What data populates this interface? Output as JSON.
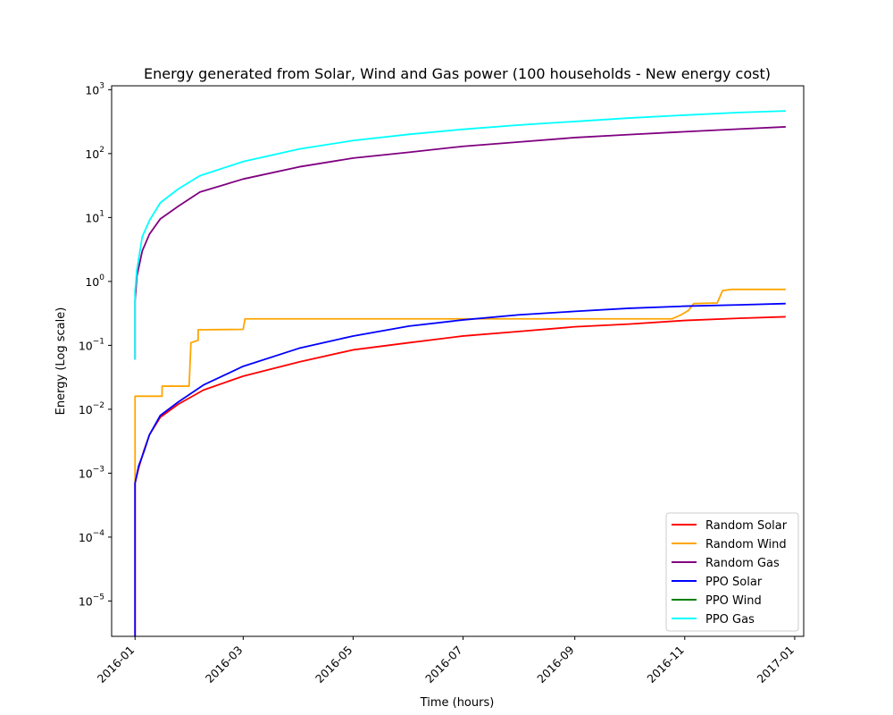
{
  "chart_data": {
    "type": "line",
    "title": "Energy generated from Solar, Wind and Gas power (100 households - New energy cost)",
    "xlabel": "Time (hours)",
    "ylabel": "Energy (Log scale)",
    "yscale": "log",
    "ylim": [
      2.8e-06,
      1150
    ],
    "xlim": [
      "2015-12-19",
      "2017-01-06"
    ],
    "grid": false,
    "legend_position": "lower-right",
    "x_ticks": [
      "2016-01",
      "2016-03",
      "2016-05",
      "2016-07",
      "2016-09",
      "2016-11",
      "2017-01"
    ],
    "y_ticks": [
      {
        "value": 1e-05,
        "base": "10",
        "exp": "−5"
      },
      {
        "value": 0.0001,
        "base": "10",
        "exp": "−4"
      },
      {
        "value": 0.001,
        "base": "10",
        "exp": "−3"
      },
      {
        "value": 0.01,
        "base": "10",
        "exp": "−2"
      },
      {
        "value": 0.1,
        "base": "10",
        "exp": "−1"
      },
      {
        "value": 1,
        "base": "10",
        "exp": "0"
      },
      {
        "value": 10,
        "base": "10",
        "exp": "1"
      },
      {
        "value": 100,
        "base": "10",
        "exp": "2"
      },
      {
        "value": 1000,
        "base": "10",
        "exp": "3"
      }
    ],
    "series": [
      {
        "name": "Random Solar",
        "color": "#ff0000",
        "points": [
          [
            "2016-01-01",
            2.8e-06
          ],
          [
            "2016-01-01",
            0.0007
          ],
          [
            "2016-01-03",
            0.0012
          ],
          [
            "2016-01-06",
            0.0023
          ],
          [
            "2016-01-09",
            0.004
          ],
          [
            "2016-01-15",
            0.0075
          ],
          [
            "2016-01-25",
            0.012
          ],
          [
            "2016-02-08",
            0.02
          ],
          [
            "2016-03-01",
            0.033
          ],
          [
            "2016-04-01",
            0.055
          ],
          [
            "2016-05-01",
            0.085
          ],
          [
            "2016-06-01",
            0.11
          ],
          [
            "2016-07-01",
            0.14
          ],
          [
            "2016-08-01",
            0.165
          ],
          [
            "2016-09-01",
            0.195
          ],
          [
            "2016-10-01",
            0.215
          ],
          [
            "2016-11-01",
            0.245
          ],
          [
            "2016-12-01",
            0.265
          ],
          [
            "2016-12-27",
            0.28
          ]
        ]
      },
      {
        "name": "Random Wind",
        "color": "#ffa500",
        "points": [
          [
            "2016-01-01",
            0.0007
          ],
          [
            "2016-01-01",
            0.016
          ],
          [
            "2016-01-16",
            0.016
          ],
          [
            "2016-01-16",
            0.023
          ],
          [
            "2016-01-31",
            0.023
          ],
          [
            "2016-02-01",
            0.11
          ],
          [
            "2016-02-05",
            0.12
          ],
          [
            "2016-02-05",
            0.175
          ],
          [
            "2016-03-01",
            0.178
          ],
          [
            "2016-03-02",
            0.26
          ],
          [
            "2016-10-25",
            0.26
          ],
          [
            "2016-10-30",
            0.3
          ],
          [
            "2016-11-03",
            0.35
          ],
          [
            "2016-11-06",
            0.45
          ],
          [
            "2016-11-19",
            0.46
          ],
          [
            "2016-11-22",
            0.72
          ],
          [
            "2016-11-27",
            0.75
          ],
          [
            "2016-12-27",
            0.75
          ]
        ]
      },
      {
        "name": "Random Gas",
        "color": "#800080",
        "points": [
          [
            "2016-01-01",
            0.06
          ],
          [
            "2016-01-01",
            0.5
          ],
          [
            "2016-01-02",
            1.2
          ],
          [
            "2016-01-05",
            3.0
          ],
          [
            "2016-01-09",
            5.5
          ],
          [
            "2016-01-15",
            9.5
          ],
          [
            "2016-01-25",
            15.0
          ],
          [
            "2016-02-06",
            25.0
          ],
          [
            "2016-03-01",
            40.0
          ],
          [
            "2016-04-01",
            62.0
          ],
          [
            "2016-05-01",
            85.0
          ],
          [
            "2016-06-01",
            105.0
          ],
          [
            "2016-07-01",
            130.0
          ],
          [
            "2016-08-01",
            152.0
          ],
          [
            "2016-09-01",
            178.0
          ],
          [
            "2016-10-01",
            198.0
          ],
          [
            "2016-11-01",
            220.0
          ],
          [
            "2016-12-01",
            242.0
          ],
          [
            "2016-12-27",
            262.0
          ]
        ]
      },
      {
        "name": "PPO Solar",
        "color": "#0000ff",
        "points": [
          [
            "2016-01-01",
            2.8e-06
          ],
          [
            "2016-01-01",
            0.0007
          ],
          [
            "2016-01-03",
            0.0013
          ],
          [
            "2016-01-06",
            0.0022
          ],
          [
            "2016-01-09",
            0.004
          ],
          [
            "2016-01-15",
            0.008
          ],
          [
            "2016-01-25",
            0.013
          ],
          [
            "2016-02-08",
            0.024
          ],
          [
            "2016-03-01",
            0.047
          ],
          [
            "2016-04-01",
            0.09
          ],
          [
            "2016-05-01",
            0.14
          ],
          [
            "2016-06-01",
            0.2
          ],
          [
            "2016-07-01",
            0.25
          ],
          [
            "2016-08-01",
            0.3
          ],
          [
            "2016-09-01",
            0.34
          ],
          [
            "2016-10-01",
            0.38
          ],
          [
            "2016-11-01",
            0.41
          ],
          [
            "2016-12-01",
            0.43
          ],
          [
            "2016-12-27",
            0.45
          ]
        ]
      },
      {
        "name": "PPO Wind",
        "color": "#008000",
        "points": []
      },
      {
        "name": "PPO Gas",
        "color": "#00ffff",
        "points": [
          [
            "2016-01-01",
            0.06
          ],
          [
            "2016-01-01",
            0.7
          ],
          [
            "2016-01-02",
            1.5
          ],
          [
            "2016-01-05",
            5.0
          ],
          [
            "2016-01-09",
            9.0
          ],
          [
            "2016-01-15",
            17.0
          ],
          [
            "2016-01-25",
            28.0
          ],
          [
            "2016-02-06",
            45.0
          ],
          [
            "2016-03-01",
            75.0
          ],
          [
            "2016-04-01",
            118.0
          ],
          [
            "2016-05-01",
            160.0
          ],
          [
            "2016-06-01",
            200.0
          ],
          [
            "2016-07-01",
            240.0
          ],
          [
            "2016-08-01",
            280.0
          ],
          [
            "2016-09-01",
            318.0
          ],
          [
            "2016-10-01",
            360.0
          ],
          [
            "2016-11-01",
            400.0
          ],
          [
            "2016-12-01",
            440.0
          ],
          [
            "2016-12-27",
            465.0
          ]
        ]
      }
    ]
  }
}
